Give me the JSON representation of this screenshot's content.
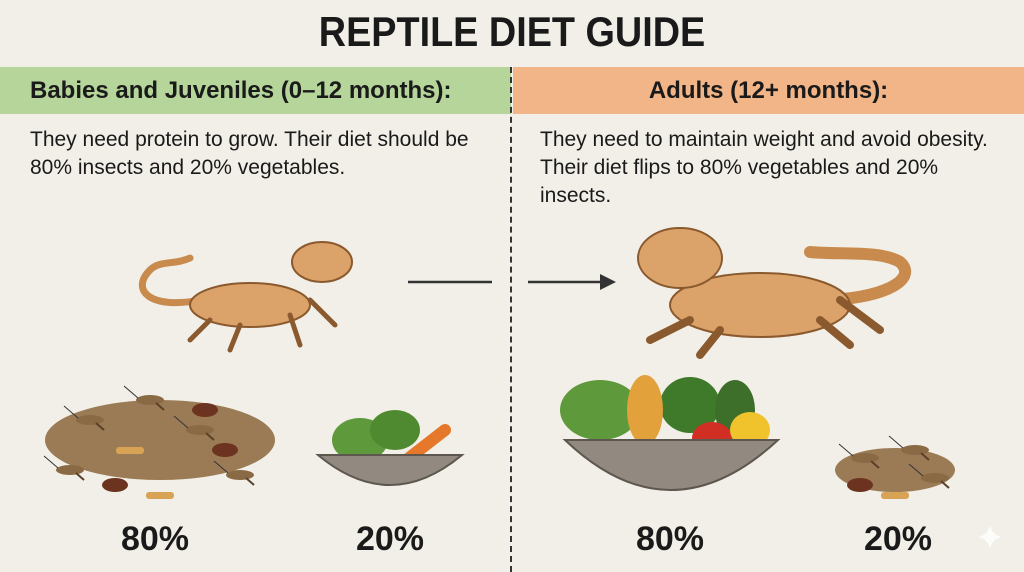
{
  "title": "REPTILE DIET GUIDE",
  "juveniles": {
    "heading": "Babies and Juveniles (0–12 months):",
    "description": "They need protein to grow. Their diet should be 80% insects and 20% vegetables.",
    "insects_percent": "80%",
    "vegetables_percent": "20%",
    "color": "#b5d59a"
  },
  "adults": {
    "heading": "Adults (12+ months):",
    "description": "They need to maintain weight and avoid obesity. Their diet flips to 80% vegetables and 20% insects.",
    "vegetables_percent": "80%",
    "insects_percent": "20%",
    "color": "#f1b587"
  },
  "icons": [
    "bearded-dragon",
    "arrow-right",
    "insect-pile",
    "vegetable-bowl",
    "sparkle"
  ]
}
